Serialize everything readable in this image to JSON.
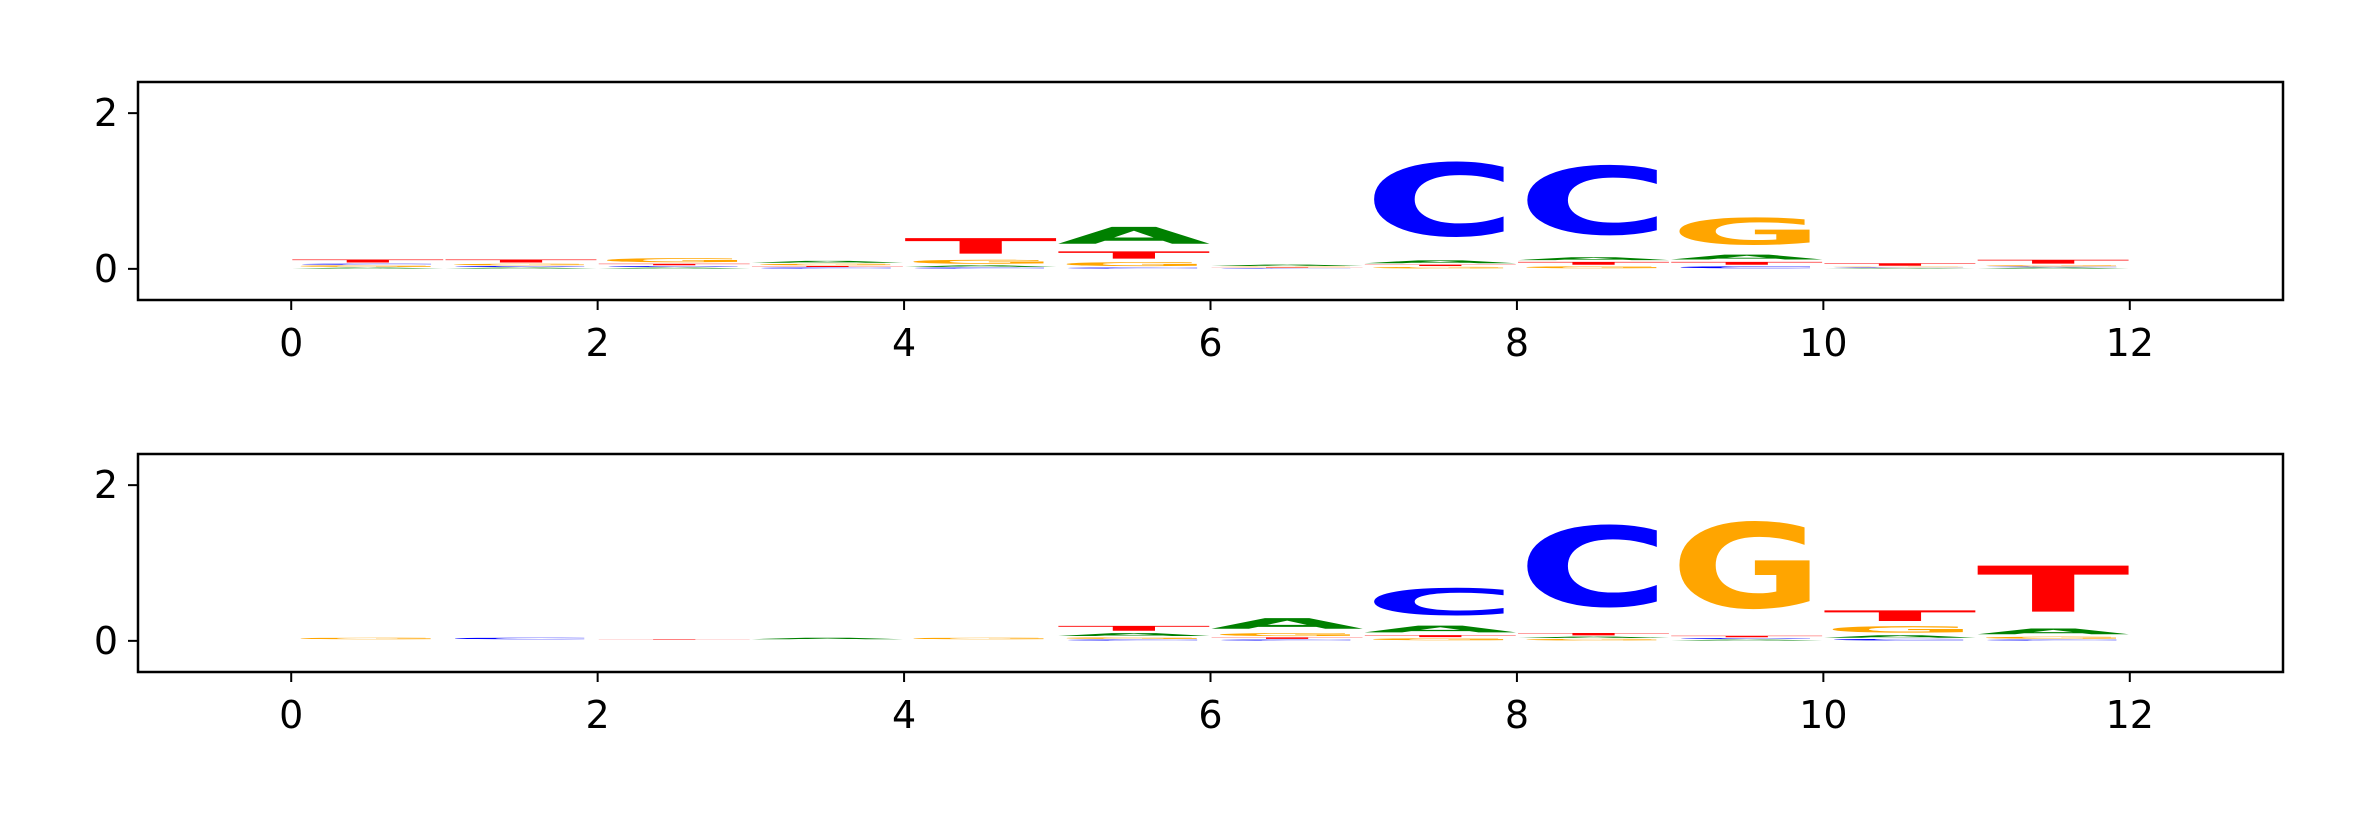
{
  "colors": {
    "A": "#008000",
    "C": "#0000ff",
    "G": "#ffa500",
    "T": "#ff0000"
  },
  "chart_data": [
    {
      "type": "sequence-logo",
      "title": "",
      "xlabel": "",
      "ylabel": "",
      "xlim": [
        -1,
        13
      ],
      "ylim": [
        -0.4,
        2.4
      ],
      "xticks": [
        "0",
        "2",
        "4",
        "6",
        "8",
        "10",
        "12"
      ],
      "yticks": [
        "0",
        "2"
      ],
      "positions": [
        {
          "x": 0.5,
          "letters": [
            [
              "A",
              0.02
            ],
            [
              "G",
              0.03
            ],
            [
              "C",
              0.02
            ],
            [
              "T",
              0.06
            ]
          ]
        },
        {
          "x": 1.5,
          "letters": [
            [
              "A",
              0.02
            ],
            [
              "C",
              0.02
            ],
            [
              "G",
              0.03
            ],
            [
              "T",
              0.06
            ]
          ]
        },
        {
          "x": 2.5,
          "letters": [
            [
              "A",
              0.02
            ],
            [
              "C",
              0.02
            ],
            [
              "T",
              0.03
            ],
            [
              "G",
              0.08
            ]
          ]
        },
        {
          "x": 3.5,
          "letters": [
            [
              "C",
              0.02
            ],
            [
              "T",
              0.02
            ],
            [
              "G",
              0.03
            ],
            [
              "A",
              0.04
            ]
          ]
        },
        {
          "x": 4.5,
          "letters": [
            [
              "C",
              0.02
            ],
            [
              "A",
              0.03
            ],
            [
              "G",
              0.08
            ],
            [
              "T",
              0.32
            ]
          ]
        },
        {
          "x": 5.5,
          "letters": [
            [
              "C",
              0.02
            ],
            [
              "G",
              0.08
            ],
            [
              "T",
              0.15
            ],
            [
              "A",
              0.35
            ]
          ]
        },
        {
          "x": 6.5,
          "letters": [
            [
              "C",
              0.01
            ],
            [
              "T",
              0.01
            ],
            [
              "G",
              0.01
            ],
            [
              "A",
              0.03
            ]
          ]
        },
        {
          "x": 7.5,
          "letters": [
            [
              "G",
              0.03
            ],
            [
              "T",
              0.03
            ],
            [
              "A",
              0.06
            ],
            [
              "C",
              1.5
            ]
          ]
        },
        {
          "x": 8.5,
          "letters": [
            [
              "G",
              0.04
            ],
            [
              "T",
              0.06
            ],
            [
              "A",
              0.06
            ],
            [
              "C",
              1.4
            ]
          ]
        },
        {
          "x": 9.5,
          "letters": [
            [
              "C",
              0.04
            ],
            [
              "T",
              0.06
            ],
            [
              "A",
              0.1
            ],
            [
              "G",
              0.55
            ]
          ]
        },
        {
          "x": 10.5,
          "letters": [
            [
              "A",
              0.01
            ],
            [
              "C",
              0.01
            ],
            [
              "G",
              0.01
            ],
            [
              "T",
              0.05
            ]
          ]
        },
        {
          "x": 11.5,
          "letters": [
            [
              "A",
              0.02
            ],
            [
              "C",
              0.01
            ],
            [
              "G",
              0.02
            ],
            [
              "T",
              0.08
            ]
          ]
        }
      ]
    },
    {
      "type": "sequence-logo",
      "title": "",
      "xlabel": "",
      "ylabel": "",
      "xlim": [
        -1,
        13
      ],
      "ylim": [
        -0.4,
        2.4
      ],
      "xticks": [
        "0",
        "2",
        "4",
        "6",
        "8",
        "10",
        "12"
      ],
      "yticks": [
        "0",
        "2"
      ],
      "positions": [
        {
          "x": 0.5,
          "letters": [
            [
              "A",
              0.005
            ],
            [
              "C",
              0.005
            ],
            [
              "T",
              0.005
            ],
            [
              "G",
              0.03
            ]
          ]
        },
        {
          "x": 1.5,
          "letters": [
            [
              "A",
              0.005
            ],
            [
              "G",
              0.005
            ],
            [
              "T",
              0.005
            ],
            [
              "C",
              0.03
            ]
          ]
        },
        {
          "x": 2.5,
          "letters": [
            [
              "A",
              0.005
            ],
            [
              "C",
              0.005
            ],
            [
              "G",
              0.005
            ],
            [
              "T",
              0.01
            ]
          ]
        },
        {
          "x": 3.5,
          "letters": [
            [
              "C",
              0.005
            ],
            [
              "G",
              0.005
            ],
            [
              "T",
              0.005
            ],
            [
              "A",
              0.03
            ]
          ]
        },
        {
          "x": 4.5,
          "letters": [
            [
              "A",
              0.005
            ],
            [
              "C",
              0.005
            ],
            [
              "T",
              0.005
            ],
            [
              "G",
              0.03
            ]
          ]
        },
        {
          "x": 5.5,
          "letters": [
            [
              "C",
              0.02
            ],
            [
              "G",
              0.03
            ],
            [
              "A",
              0.06
            ],
            [
              "T",
              0.1
            ]
          ]
        },
        {
          "x": 6.5,
          "letters": [
            [
              "C",
              0.02
            ],
            [
              "T",
              0.03
            ],
            [
              "G",
              0.06
            ],
            [
              "A",
              0.22
            ]
          ]
        },
        {
          "x": 7.5,
          "letters": [
            [
              "G",
              0.04
            ],
            [
              "T",
              0.04
            ],
            [
              "A",
              0.14
            ],
            [
              "C",
              0.55
            ]
          ]
        },
        {
          "x": 8.5,
          "letters": [
            [
              "G",
              0.03
            ],
            [
              "A",
              0.03
            ],
            [
              "T",
              0.05
            ],
            [
              "C",
              1.65
            ]
          ]
        },
        {
          "x": 9.5,
          "letters": [
            [
              "A",
              0.02
            ],
            [
              "C",
              0.02
            ],
            [
              "T",
              0.03
            ],
            [
              "G",
              1.75
            ]
          ]
        },
        {
          "x": 10.5,
          "letters": [
            [
              "C",
              0.03
            ],
            [
              "A",
              0.05
            ],
            [
              "G",
              0.13
            ],
            [
              "T",
              0.22
            ]
          ]
        },
        {
          "x": 11.5,
          "letters": [
            [
              "C",
              0.02
            ],
            [
              "G",
              0.04
            ],
            [
              "A",
              0.12
            ],
            [
              "T",
              0.95
            ]
          ]
        }
      ]
    }
  ]
}
